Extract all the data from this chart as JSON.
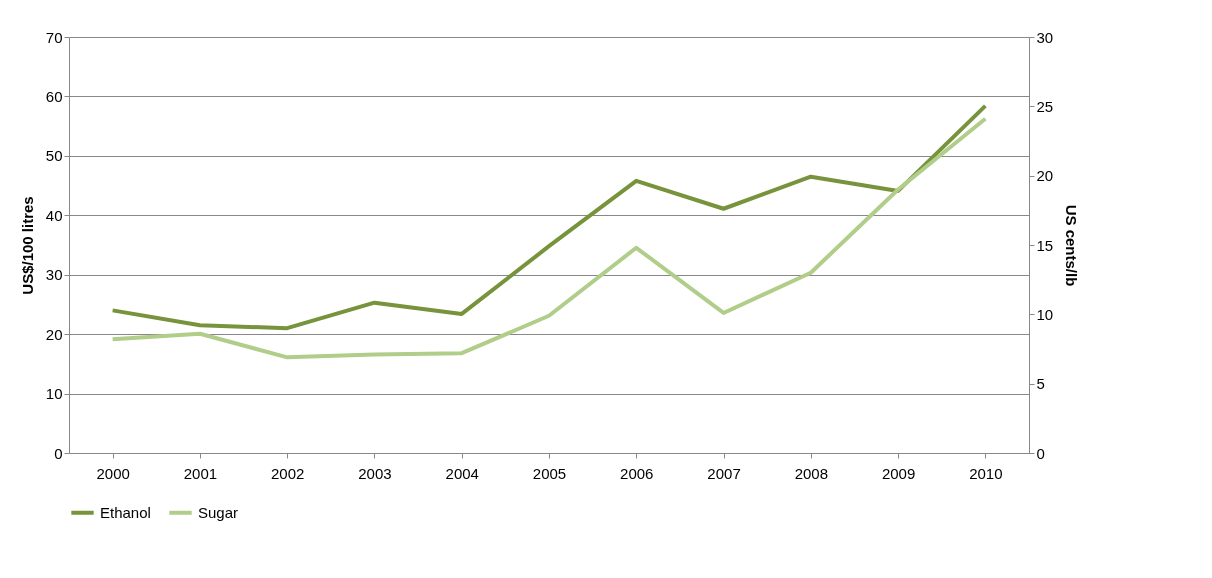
{
  "chart_data": {
    "type": "line",
    "ylabel": "US$/100 litres",
    "y2label": "US cents/lb",
    "categories": [
      "2000",
      "2001",
      "2002",
      "2003",
      "2004",
      "2005",
      "2006",
      "2007",
      "2008",
      "2009",
      "2010"
    ],
    "series": [
      {
        "name": "Ethanol",
        "color": "#77933c",
        "values": [
          24,
          21.5,
          21,
          25.3,
          23.4,
          34.8,
          45.8,
          41.1,
          46.5,
          44.1,
          58.4
        ]
      },
      {
        "name": "Sugar",
        "color": "#b0cd8a",
        "axis": "y2",
        "values": [
          8.2,
          8.6,
          6.9,
          7.1,
          7.2,
          9.9,
          14.8,
          10.1,
          13.0,
          19.0,
          24.1
        ]
      }
    ],
    "ylim": [
      0,
      70
    ],
    "yticks": [
      0,
      10,
      20,
      30,
      40,
      50,
      60,
      70
    ],
    "y2lim": [
      0,
      30
    ],
    "y2ticks": [
      0,
      5,
      10,
      15,
      20,
      25,
      30
    ],
    "grid": "y",
    "legend": "bottom",
    "marker": "none",
    "line_style": "solid"
  }
}
